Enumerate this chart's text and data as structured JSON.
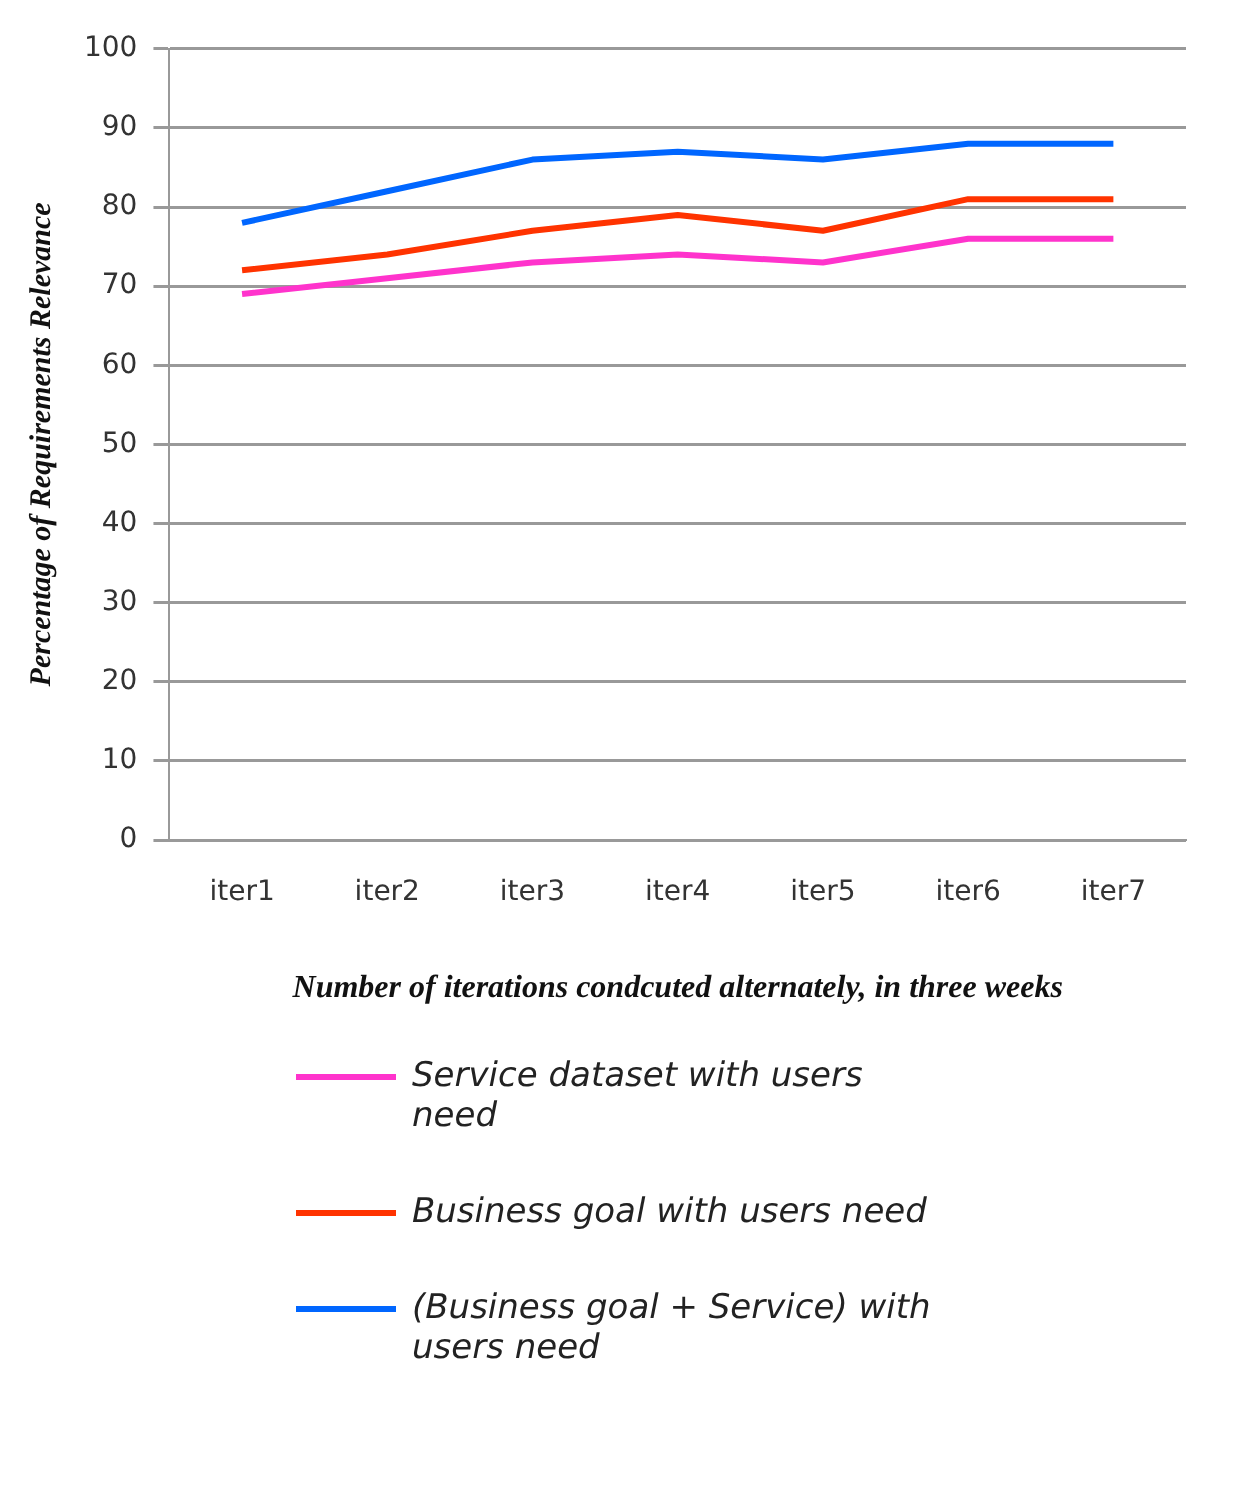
{
  "chart_data": {
    "type": "line",
    "xlabel": "Number of iterations condcuted alternately, in three weeks",
    "ylabel": "Percentage of Requirements Relevance",
    "categories": [
      "iter1",
      "iter2",
      "iter3",
      "iter4",
      "iter5",
      "iter6",
      "iter7"
    ],
    "series": [
      {
        "name": "Service dataset with users need",
        "color": "#ff33cc",
        "values": [
          69,
          71,
          73,
          74,
          73,
          76,
          76
        ]
      },
      {
        "name": "Business goal with users need",
        "color": "#ff3300",
        "values": [
          72,
          74,
          77,
          79,
          77,
          81,
          81
        ]
      },
      {
        "name": "(Business goal + Service) with users need",
        "color": "#0066ff",
        "values": [
          78,
          82,
          86,
          87,
          86,
          88,
          88
        ]
      }
    ],
    "ylim": [
      0,
      100
    ],
    "yticks": [
      0,
      10,
      20,
      30,
      40,
      50,
      60,
      70,
      80,
      90,
      100
    ],
    "grid": "y",
    "legend": "bottom",
    "marker": "none",
    "line_style": "solid"
  }
}
